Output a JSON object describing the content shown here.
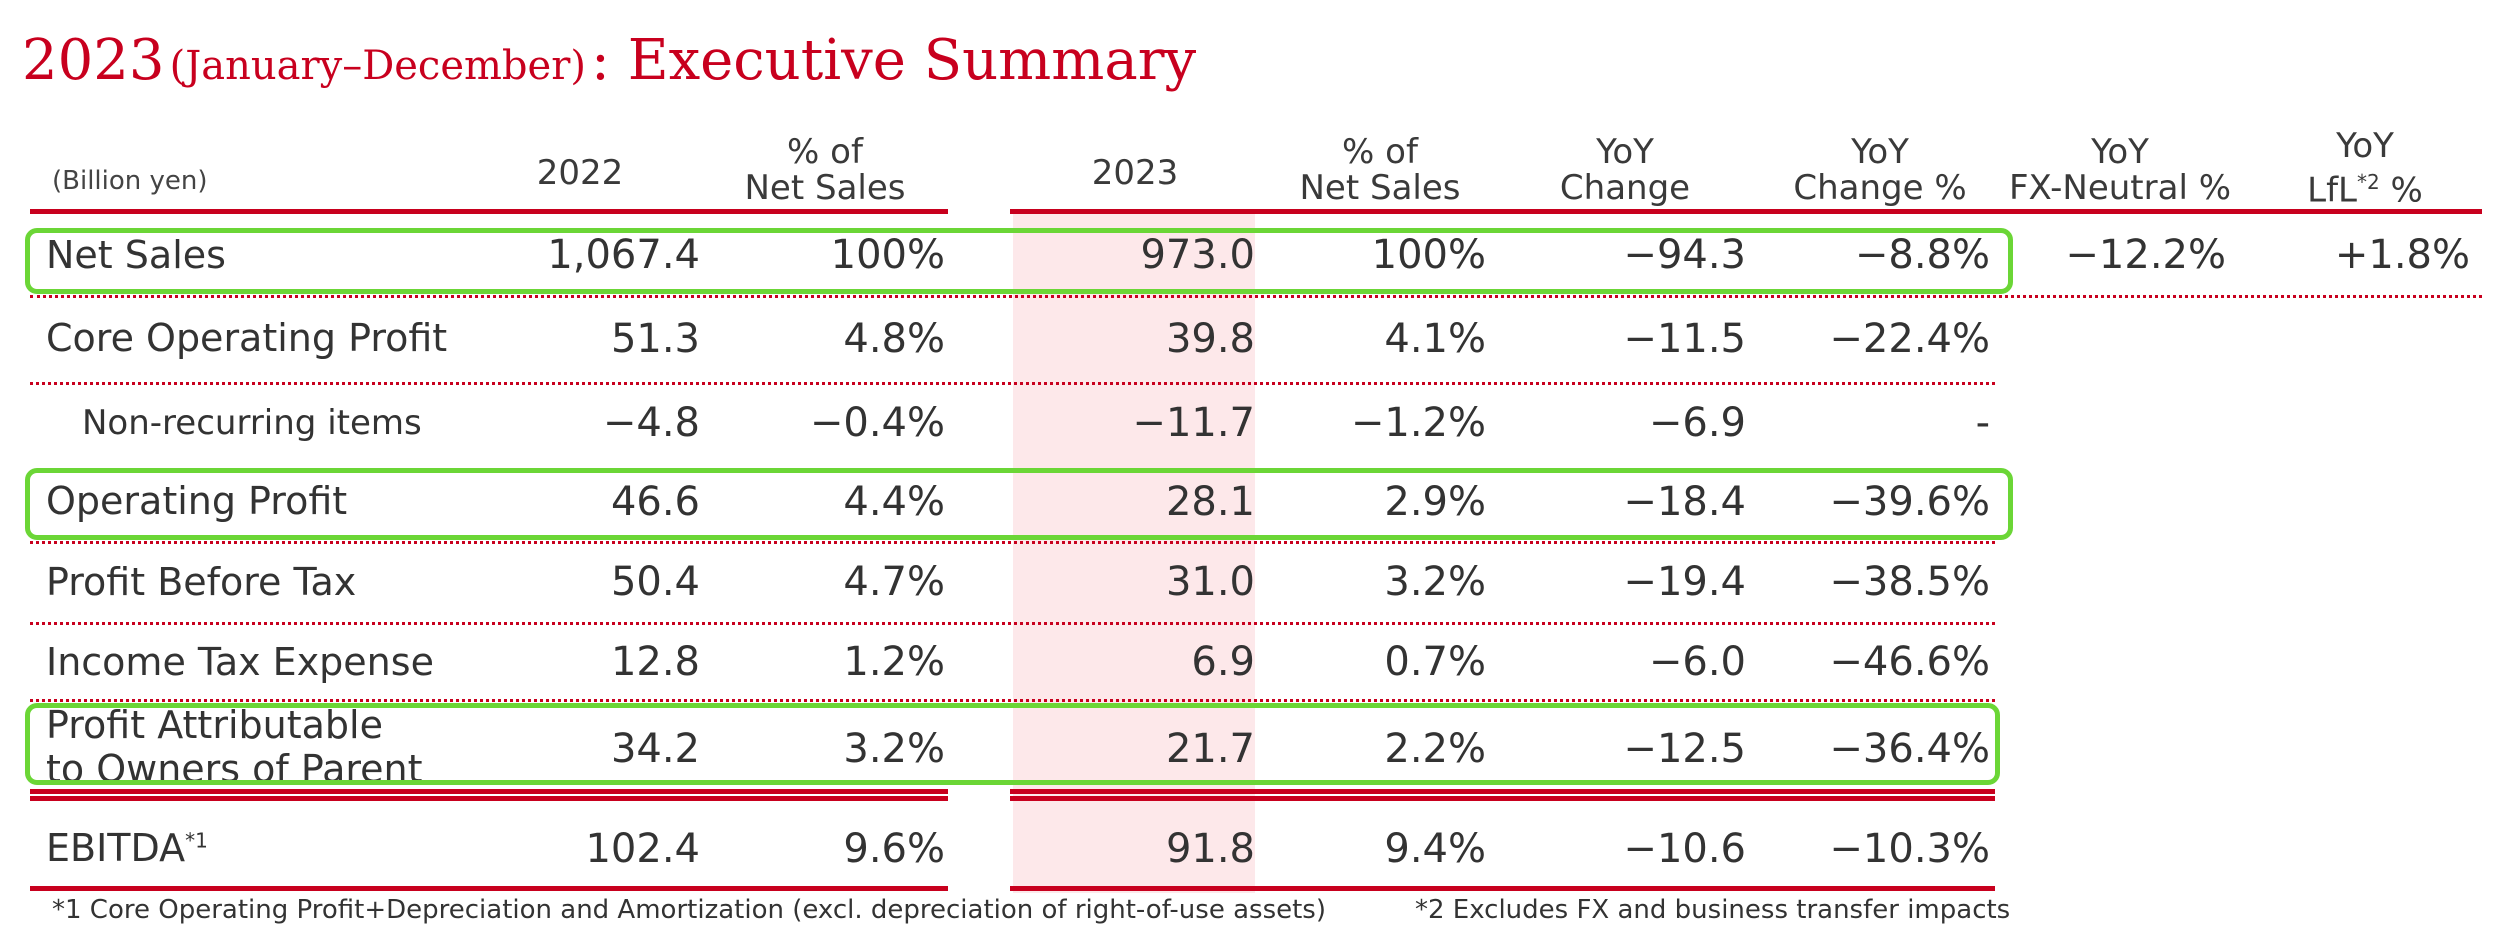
{
  "title": {
    "year": "2023",
    "period": "(January–December)",
    "suffix": ": Executive Summary"
  },
  "headers": {
    "unit": "(Billion yen)",
    "c2022": "2022",
    "pct2022_line1": "% of",
    "pct2022_line2": "Net Sales",
    "c2023": "2023",
    "pct2023_line1": "% of",
    "pct2023_line2": "Net Sales",
    "yoy_line1": "YoY",
    "yoy_line2": "Change",
    "yoyp_line1": "YoY",
    "yoyp_line2": "Change %",
    "fx_line1": "YoY",
    "fx_line2": "FX-Neutral %",
    "lfl_line1": "YoY",
    "lfl_line2a": "LfL",
    "lfl_sup": "*2",
    "lfl_line2b": " %"
  },
  "rows": [
    {
      "label": "Net Sales",
      "v2022": "1,067.4",
      "p2022": "100%",
      "v2023": "973.0",
      "p2023": "100%",
      "yoy": "−94.3",
      "yoyp": "−8.8%",
      "fx": "−12.2%",
      "lfl": "+1.8%"
    },
    {
      "label": "Core Operating Profit",
      "v2022": "51.3",
      "p2022": "4.8%",
      "v2023": "39.8",
      "p2023": "4.1%",
      "yoy": "−11.5",
      "yoyp": "−22.4%"
    },
    {
      "label": "Non-recurring items",
      "v2022": "−4.8",
      "p2022": "−0.4%",
      "v2023": "−11.7",
      "p2023": "−1.2%",
      "yoy": "−6.9",
      "yoyp": "-"
    },
    {
      "label": "Operating Profit",
      "v2022": "46.6",
      "p2022": "4.4%",
      "v2023": "28.1",
      "p2023": "2.9%",
      "yoy": "−18.4",
      "yoyp": "−39.6%"
    },
    {
      "label": "Profit Before Tax",
      "v2022": "50.4",
      "p2022": "4.7%",
      "v2023": "31.0",
      "p2023": "3.2%",
      "yoy": "−19.4",
      "yoyp": "−38.5%"
    },
    {
      "label": "Income Tax Expense",
      "v2022": "12.8",
      "p2022": "1.2%",
      "v2023": "6.9",
      "p2023": "0.7%",
      "yoy": "−6.0",
      "yoyp": "−46.6%"
    },
    {
      "label_line1": "Profit Attributable",
      "label_line2": "to Owners of Parent",
      "v2022": "34.2",
      "p2022": "3.2%",
      "v2023": "21.7",
      "p2023": "2.2%",
      "yoy": "−12.5",
      "yoyp": "−36.4%"
    },
    {
      "label": "EBITDA",
      "label_sup": "*1",
      "v2022": "102.4",
      "p2022": "9.6%",
      "v2023": "91.8",
      "p2023": "9.4%",
      "yoy": "−10.6",
      "yoyp": "−10.3%"
    }
  ],
  "footnotes": {
    "note1": "*1 Core Operating Profit+Depreciation and Amortization (excl. depreciation of right-of-use assets)",
    "note2": "*2 Excludes FX and business transfer impacts"
  },
  "colors": {
    "accent": "#c8001e",
    "highlight": "#fde8ea",
    "box": "#6bd636"
  }
}
